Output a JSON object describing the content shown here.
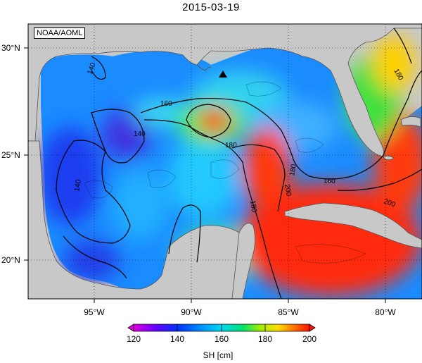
{
  "title": "2015-03-19",
  "credit": "NOAA/AOML",
  "map": {
    "lat_labels": [
      "30°N",
      "25°N",
      "20°N"
    ],
    "lon_labels": [
      "95°W",
      "90°W",
      "85°W",
      "80°W"
    ],
    "contour_labels": [
      "140",
      "140",
      "140",
      "160",
      "160",
      "180",
      "180",
      "180",
      "200",
      "200",
      "180"
    ],
    "marker": "triangle",
    "land_color": "#c8c8c8"
  },
  "colorbar": {
    "label": "SH [cm]",
    "ticks": [
      "120",
      "140",
      "160",
      "180",
      "200"
    ],
    "range": [
      120,
      200
    ]
  }
}
